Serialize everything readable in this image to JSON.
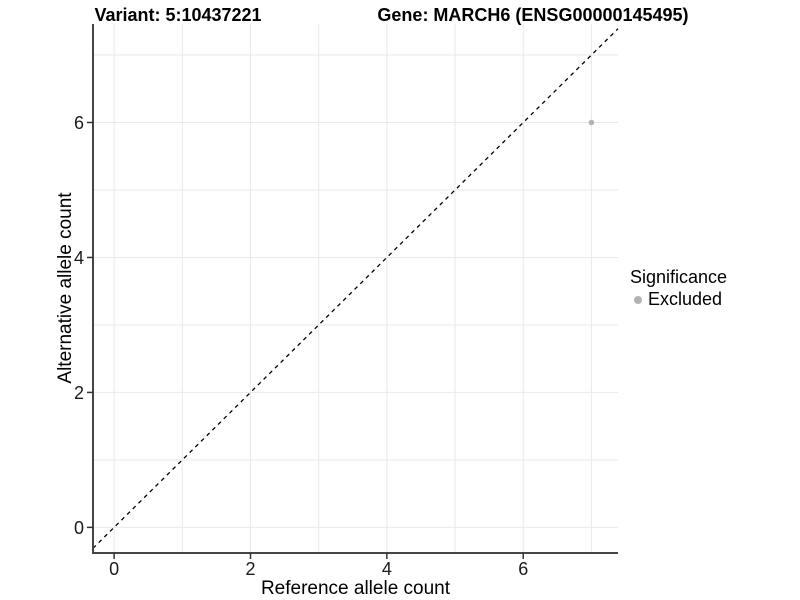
{
  "titles": {
    "left": "Variant: 5:10437221",
    "right": "Gene: MARCH6 (ENSG00000145495)"
  },
  "chart_data": {
    "type": "scatter",
    "xlabel": "Reference allele count",
    "ylabel": "Alternative allele count",
    "xlim": [
      -0.31,
      7.39
    ],
    "ylim": [
      -0.38,
      7.46
    ],
    "x_ticks": [
      0,
      2,
      4,
      6
    ],
    "y_ticks": [
      0,
      2,
      4,
      6
    ],
    "grid_values_x": [
      0,
      1,
      2,
      3,
      4,
      5,
      6,
      7
    ],
    "grid_values_y": [
      0,
      1,
      2,
      3,
      4,
      5,
      6,
      7
    ],
    "grid_on": true,
    "identity_line": {
      "slope": 1,
      "intercept": 0,
      "style": "dashed",
      "color": "#000000"
    },
    "points": [
      {
        "x": 7,
        "y": 6,
        "series": "Excluded",
        "color": "#b3b3b3",
        "radius": 2.8
      }
    ],
    "legend": {
      "title": "Significance",
      "position": "right",
      "items": [
        {
          "label": "Excluded",
          "color": "#b3b3b3"
        }
      ]
    },
    "colors": {
      "grid": "#e9e9e9",
      "axis_line": "#444444",
      "tick": "#333333",
      "tick_label": "#1a1a1a"
    }
  }
}
